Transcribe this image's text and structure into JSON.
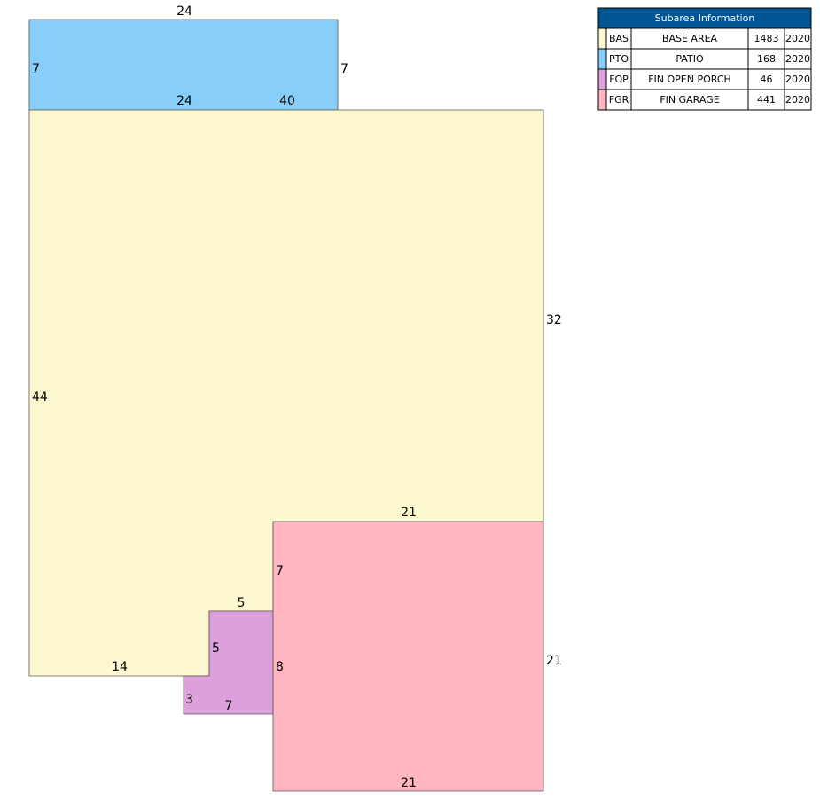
{
  "sketch": {
    "dimensions": [
      "24",
      "7",
      "7",
      "24",
      "40",
      "32",
      "21",
      "7",
      "5",
      "5",
      "14",
      "44",
      "3",
      "7",
      "8",
      "21",
      "21"
    ]
  },
  "table": {
    "title": "Subarea Information",
    "rows": [
      [
        "BAS",
        "BASE AREA",
        1483,
        2020
      ],
      [
        "PTO",
        "PATIO",
        168,
        2020
      ],
      [
        "FOP",
        "FIN OPEN PORCH",
        46,
        2020
      ],
      [
        "FGR",
        "FIN GARAGE",
        441,
        2020
      ]
    ]
  }
}
